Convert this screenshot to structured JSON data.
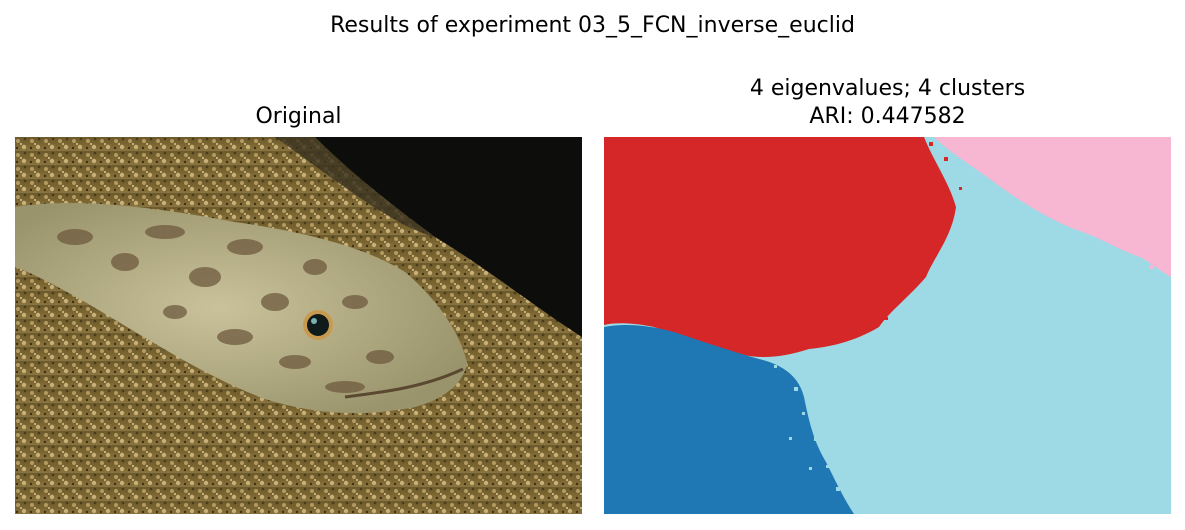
{
  "figure": {
    "suptitle": "Results of experiment 03_5_FCN_inverse_euclid"
  },
  "panels": {
    "original": {
      "title": "Original",
      "image": "photo of a camouflaged fish lying on sandy gravel seabed"
    },
    "segmentation": {
      "title_line1": "4 eigenvalues; 4 clusters",
      "title_line2": "ARI: 0.447582",
      "cluster_colors": [
        "#d62728",
        "#1f77b4",
        "#9edae5",
        "#f7b6d2"
      ]
    }
  }
}
